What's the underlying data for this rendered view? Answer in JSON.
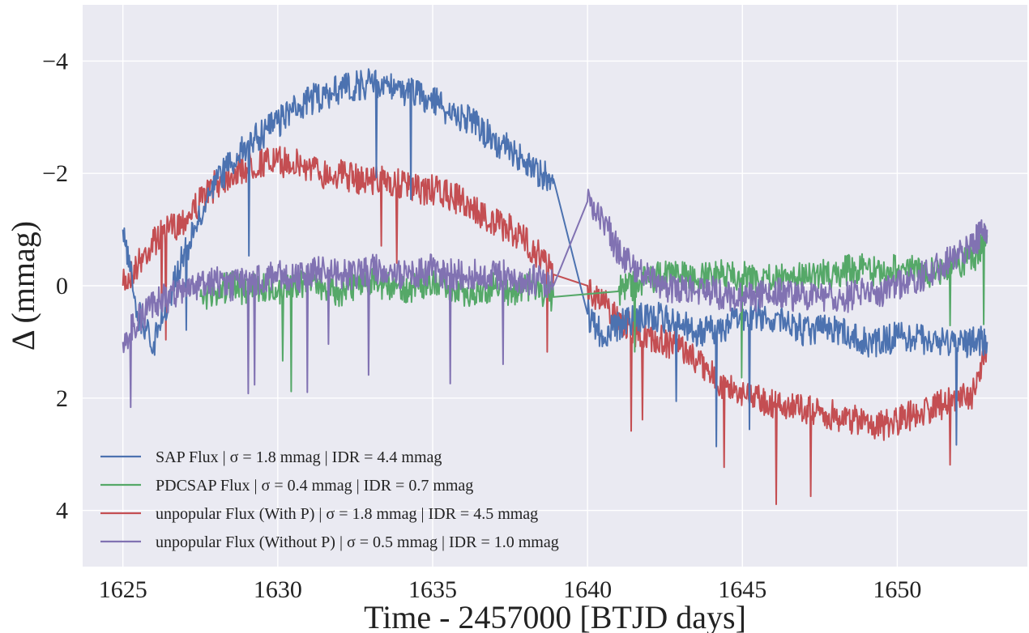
{
  "chart_data": {
    "type": "line",
    "xlabel": "Time - 2457000 [BTJD days]",
    "ylabel": "Δ (mmag)",
    "xlim": [
      1623.7,
      1654.2
    ],
    "ylim": [
      5.0,
      -5.0
    ],
    "y_inverted": true,
    "xticks": [
      1625,
      1630,
      1635,
      1640,
      1645,
      1650
    ],
    "xtick_labels": [
      "1625",
      "1630",
      "1635",
      "1640",
      "1645",
      "1650"
    ],
    "yticks": [
      -4,
      -2,
      0,
      2,
      4
    ],
    "ytick_labels": [
      "−4",
      "−2",
      "0",
      "2",
      "4"
    ],
    "grid": true,
    "background": "#eaeaf2",
    "legend_position": "lower-left",
    "series": [
      {
        "name": "SAP Flux | σ = 1.8 mmag | IDR = 4.4 mmag",
        "color": "#4c72b0",
        "x": [
          1625.0,
          1625.5,
          1626.0,
          1626.5,
          1627.0,
          1627.5,
          1628.0,
          1628.5,
          1629.0,
          1629.5,
          1630.0,
          1630.5,
          1631.0,
          1631.5,
          1632.0,
          1632.5,
          1633.0,
          1633.5,
          1634.0,
          1634.5,
          1635.0,
          1635.5,
          1636.0,
          1636.5,
          1637.0,
          1637.5,
          1638.0,
          1638.5,
          1638.9,
          1640.0,
          1640.5,
          1641.0,
          1641.5,
          1642.0,
          1642.5,
          1643.0,
          1643.5,
          1644.0,
          1644.5,
          1645.0,
          1645.5,
          1646.0,
          1646.5,
          1647.0,
          1647.5,
          1648.0,
          1648.5,
          1649.0,
          1649.5,
          1650.0,
          1650.5,
          1651.0,
          1651.5,
          1652.0,
          1652.5,
          1652.9
        ],
        "y": [
          -1.0,
          0.5,
          1.0,
          0.2,
          -0.6,
          -1.2,
          -1.8,
          -2.2,
          -2.5,
          -2.7,
          -2.9,
          -3.1,
          -3.3,
          -3.4,
          -3.5,
          -3.55,
          -3.6,
          -3.6,
          -3.5,
          -3.4,
          -3.3,
          -3.1,
          -3.0,
          -2.8,
          -2.6,
          -2.4,
          -2.2,
          -2.0,
          -1.9,
          0.5,
          0.9,
          0.7,
          0.6,
          0.5,
          0.6,
          0.7,
          0.8,
          0.8,
          0.7,
          0.6,
          0.5,
          0.6,
          0.7,
          0.8,
          0.8,
          0.8,
          0.9,
          1.0,
          1.0,
          0.9,
          0.9,
          1.0,
          1.0,
          1.0,
          1.0,
          1.0
        ]
      },
      {
        "name": "PDCSAP Flux | σ = 0.4 mmag | IDR = 0.7 mmag",
        "color": "#55a868",
        "x": [
          1627.5,
          1628.0,
          1628.5,
          1629.0,
          1629.5,
          1630.0,
          1630.5,
          1631.0,
          1631.5,
          1632.0,
          1632.5,
          1633.0,
          1633.5,
          1634.0,
          1634.5,
          1635.0,
          1635.5,
          1636.0,
          1636.5,
          1637.0,
          1637.5,
          1638.0,
          1638.5,
          1638.9,
          1641.0,
          1641.5,
          1642.0,
          1642.5,
          1643.0,
          1643.5,
          1644.0,
          1644.5,
          1645.0,
          1645.5,
          1646.0,
          1646.5,
          1647.0,
          1647.5,
          1648.0,
          1648.5,
          1649.0,
          1649.5,
          1650.0,
          1650.5,
          1651.0,
          1651.5,
          1652.0,
          1652.5,
          1652.9
        ],
        "y": [
          0.2,
          0.1,
          0.0,
          0.1,
          0.0,
          0.1,
          0.0,
          -0.1,
          0.0,
          0.1,
          0.0,
          -0.1,
          0.0,
          0.1,
          0.0,
          -0.1,
          0.0,
          0.1,
          0.1,
          0.0,
          0.1,
          0.0,
          0.1,
          0.2,
          0.1,
          0.0,
          -0.1,
          -0.2,
          -0.2,
          -0.1,
          -0.2,
          -0.2,
          -0.2,
          -0.1,
          -0.2,
          -0.2,
          -0.1,
          -0.2,
          -0.2,
          -0.3,
          -0.3,
          -0.2,
          -0.3,
          -0.3,
          -0.2,
          -0.3,
          -0.4,
          -0.5,
          -0.9
        ]
      },
      {
        "name": "unpopular Flux (With P) | σ = 1.8 mmag | IDR = 4.5 mmag",
        "color": "#c44e52",
        "x": [
          1625.0,
          1625.5,
          1626.0,
          1626.5,
          1627.0,
          1627.5,
          1628.0,
          1628.5,
          1629.0,
          1629.5,
          1630.0,
          1630.5,
          1631.0,
          1631.5,
          1632.0,
          1632.5,
          1633.0,
          1633.5,
          1634.0,
          1634.5,
          1635.0,
          1635.5,
          1636.0,
          1636.5,
          1637.0,
          1637.5,
          1638.0,
          1638.5,
          1638.9,
          1640.0,
          1640.5,
          1641.0,
          1641.5,
          1642.0,
          1642.5,
          1643.0,
          1643.5,
          1644.0,
          1644.5,
          1645.0,
          1645.5,
          1646.0,
          1646.5,
          1647.0,
          1647.5,
          1648.0,
          1648.5,
          1649.0,
          1649.5,
          1650.0,
          1650.5,
          1651.0,
          1651.5,
          1652.0,
          1652.5,
          1652.9
        ],
        "y": [
          0.0,
          -0.4,
          -0.8,
          -1.0,
          -1.2,
          -1.5,
          -1.8,
          -2.0,
          -2.1,
          -2.2,
          -2.2,
          -2.2,
          -2.1,
          -2.0,
          -2.0,
          -1.9,
          -1.9,
          -1.9,
          -1.8,
          -1.7,
          -1.7,
          -1.6,
          -1.5,
          -1.3,
          -1.1,
          -1.0,
          -0.8,
          -0.5,
          -0.2,
          0.0,
          0.3,
          0.6,
          0.8,
          0.9,
          1.0,
          1.1,
          1.3,
          1.6,
          1.8,
          1.9,
          2.0,
          2.1,
          2.1,
          2.2,
          2.3,
          2.3,
          2.4,
          2.4,
          2.5,
          2.4,
          2.3,
          2.2,
          2.1,
          2.0,
          1.9,
          1.0
        ]
      },
      {
        "name": "unpopular Flux (Without P) | σ = 0.5 mmag | IDR = 1.0 mmag",
        "color": "#8172b2",
        "x": [
          1625.0,
          1625.5,
          1626.0,
          1626.5,
          1627.0,
          1627.5,
          1628.0,
          1628.5,
          1629.0,
          1629.5,
          1630.0,
          1630.5,
          1631.0,
          1631.5,
          1632.0,
          1632.5,
          1633.0,
          1633.5,
          1634.0,
          1634.5,
          1635.0,
          1635.5,
          1636.0,
          1636.5,
          1637.0,
          1637.5,
          1638.0,
          1638.5,
          1638.9,
          1640.0,
          1640.5,
          1641.0,
          1641.5,
          1642.0,
          1642.5,
          1643.0,
          1643.5,
          1644.0,
          1644.5,
          1645.0,
          1645.5,
          1646.0,
          1646.5,
          1647.0,
          1647.5,
          1648.0,
          1648.5,
          1649.0,
          1649.5,
          1650.0,
          1650.5,
          1651.0,
          1651.5,
          1652.0,
          1652.5,
          1652.9
        ],
        "y": [
          1.0,
          0.6,
          0.3,
          0.2,
          0.1,
          0.0,
          -0.1,
          0.0,
          -0.1,
          -0.1,
          -0.2,
          -0.1,
          -0.2,
          -0.3,
          -0.2,
          -0.2,
          -0.3,
          -0.3,
          -0.2,
          -0.2,
          -0.3,
          -0.2,
          -0.2,
          -0.2,
          -0.2,
          -0.2,
          -0.1,
          -0.1,
          0.0,
          -1.5,
          -1.2,
          -0.6,
          -0.3,
          -0.1,
          0.0,
          0.1,
          0.1,
          0.1,
          0.2,
          0.2,
          0.2,
          0.1,
          0.2,
          0.2,
          0.2,
          0.2,
          0.2,
          0.1,
          0.1,
          0.0,
          -0.1,
          -0.2,
          -0.4,
          -0.6,
          -0.8,
          -1.0
        ]
      }
    ]
  }
}
